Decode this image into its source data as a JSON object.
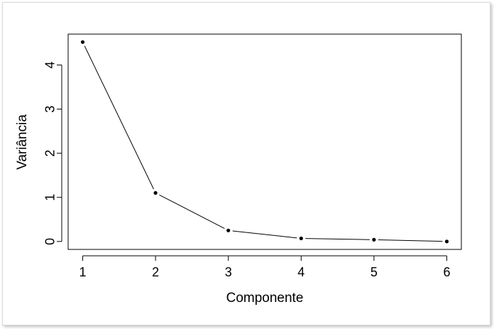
{
  "chart_data": {
    "type": "line",
    "x": [
      1,
      2,
      3,
      4,
      5,
      6
    ],
    "series": [
      {
        "values": [
          4.52,
          1.1,
          0.25,
          0.07,
          0.04,
          0.0
        ]
      }
    ],
    "xlabel": "Componente",
    "ylabel": "Variância",
    "xticks": [
      "1",
      "2",
      "3",
      "4",
      "5",
      "6"
    ],
    "yticks": [
      "0",
      "1",
      "2",
      "3",
      "4"
    ],
    "xlim": [
      0.8,
      6.2
    ],
    "ylim": [
      -0.18,
      4.7
    ],
    "markers": true,
    "grid": false,
    "colors": {
      "line": "#000000",
      "axis": "#000000"
    }
  }
}
